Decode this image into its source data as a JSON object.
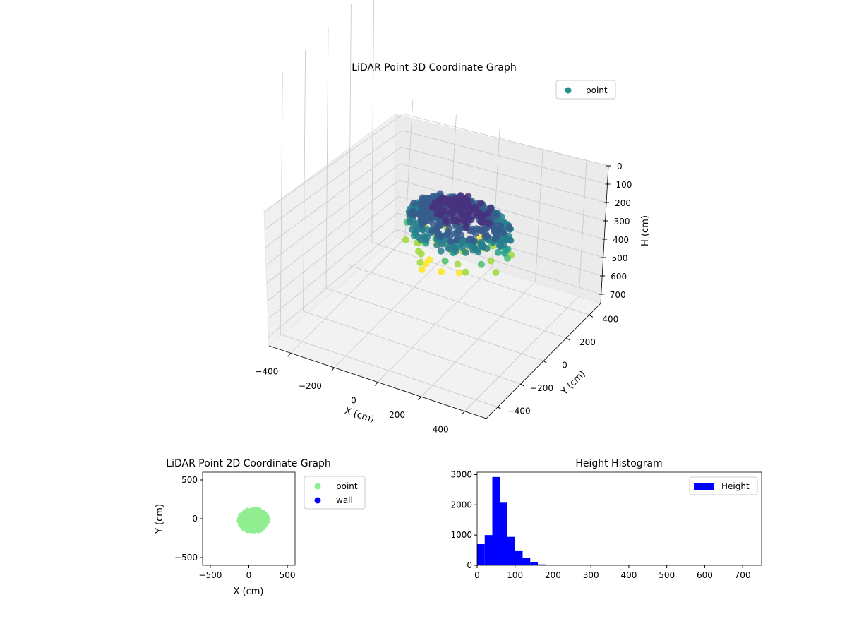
{
  "chart_data": [
    {
      "type": "scatter",
      "title": "LiDAR Point 3D Coordinate Graph",
      "xlabel": "X (cm)",
      "ylabel": "Y (cm)",
      "zlabel": "H (cm)",
      "xlim": [
        -500,
        500
      ],
      "ylim": [
        -500,
        500
      ],
      "zlim": [
        0,
        750
      ],
      "z_inverted": true,
      "x_ticks": [
        -400,
        -200,
        0,
        200,
        400
      ],
      "y_ticks": [
        -400,
        -200,
        0,
        200,
        400
      ],
      "z_ticks": [
        0,
        100,
        200,
        300,
        400,
        500,
        600,
        700
      ],
      "grid": true,
      "legend": "upper right",
      "colormap": "viridis",
      "series": [
        {
          "name": "point",
          "color": "#21918c"
        }
      ]
    },
    {
      "type": "scatter",
      "title": "LiDAR Point 2D Coordinate Graph",
      "xlabel": "X (cm)",
      "ylabel": "Y (cm)",
      "xlim": [
        -600,
        600
      ],
      "ylim": [
        -600,
        600
      ],
      "x_ticks": [
        -500,
        0,
        500
      ],
      "y_ticks": [
        -500,
        0,
        500
      ],
      "legend": "outside right",
      "series": [
        {
          "name": "point",
          "color": "#90ee90"
        },
        {
          "name": "wall",
          "color": "#0000ff"
        }
      ]
    },
    {
      "type": "bar",
      "title": "Height Histogram",
      "xlabel": "",
      "ylabel": "",
      "xlim": [
        0,
        750
      ],
      "ylim": [
        0,
        3080
      ],
      "x_ticks": [
        0,
        100,
        200,
        300,
        400,
        500,
        600,
        700
      ],
      "y_ticks": [
        0,
        1000,
        2000,
        3000
      ],
      "bin_width": 20,
      "bin_starts": [
        0,
        20,
        40,
        60,
        80,
        100,
        120,
        140,
        160,
        180
      ],
      "values": [
        700,
        1000,
        2920,
        2070,
        940,
        470,
        240,
        100,
        30,
        8
      ],
      "legend": "upper right",
      "series": [
        {
          "name": "Height",
          "color": "#0000ff"
        }
      ]
    }
  ]
}
